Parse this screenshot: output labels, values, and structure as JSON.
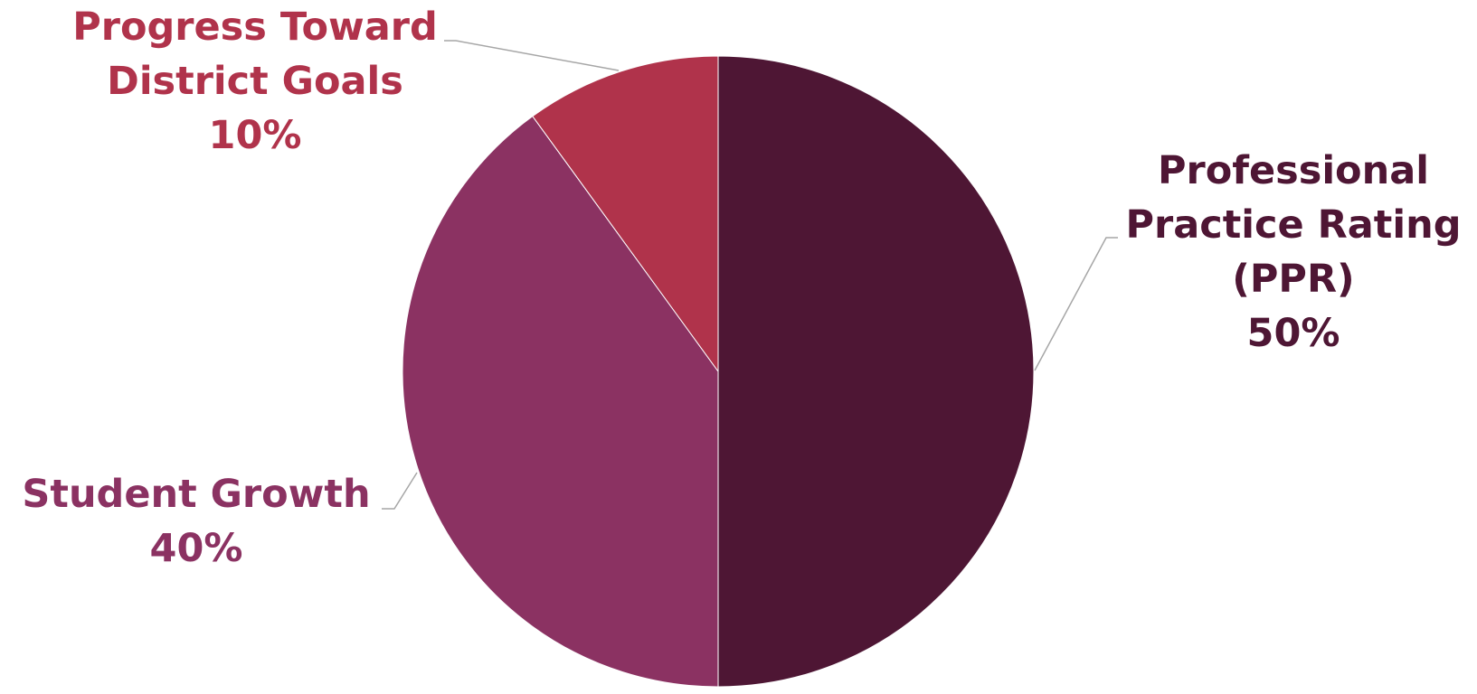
{
  "chart_data": {
    "type": "pie",
    "title": "",
    "legend": "none",
    "slices": [
      {
        "label_lines": [
          "Professional",
          "Practice Rating",
          "(PPR)"
        ],
        "value": 50,
        "value_label": "50%",
        "color": "#4e1634"
      },
      {
        "label_lines": [
          "Student Growth"
        ],
        "value": 40,
        "value_label": "40%",
        "color": "#8b3262"
      },
      {
        "label_lines": [
          "Progress Toward",
          "District Goals"
        ],
        "value": 10,
        "value_label": "10%",
        "color": "#b0334b"
      }
    ],
    "leader_line_color": "#a6a6a6"
  }
}
